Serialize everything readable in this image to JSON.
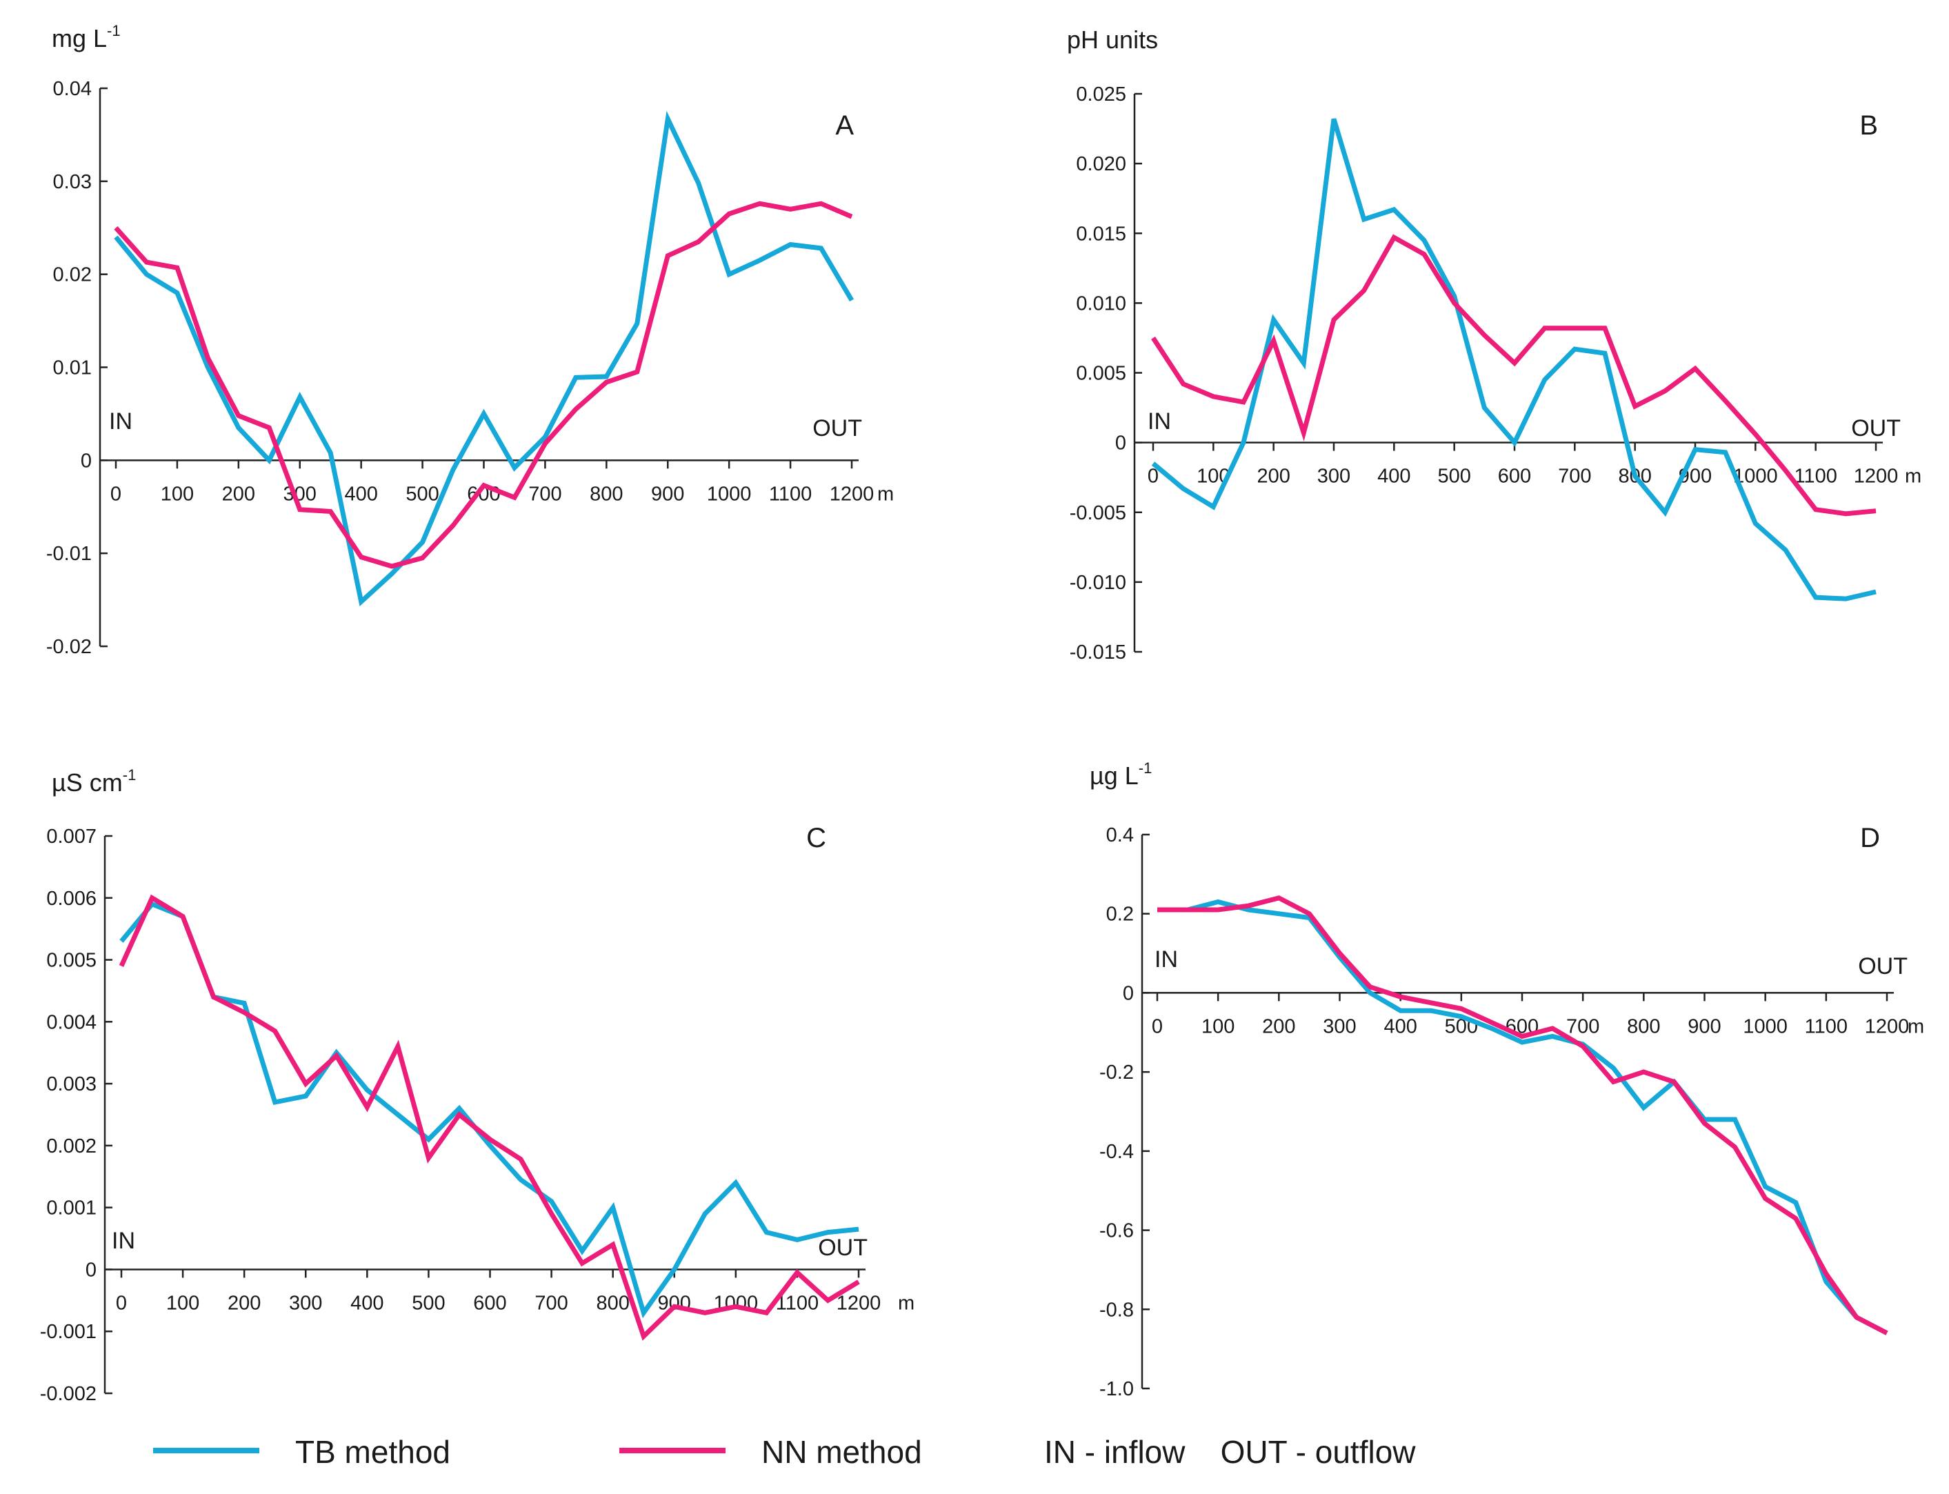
{
  "colors": {
    "tb": "#16a8d8",
    "nn": "#ec1e79",
    "axis": "#222222"
  },
  "legend": {
    "tb_label": "TB method",
    "nn_label": "NN method",
    "in_out_label": "IN - inflow    OUT - outflow"
  },
  "chart_data": [
    {
      "id": "A",
      "type": "line",
      "panel_letter": "A",
      "ylabel": "mg L",
      "ylabel_sup": "-1",
      "ylim": [
        -0.02,
        0.04
      ],
      "yticks": [
        -0.02,
        -0.01,
        0,
        0.01,
        0.02,
        0.03,
        0.04
      ],
      "ytick_labels": [
        "-0.02",
        "-0.01",
        "0",
        "0.01",
        "0.02",
        "0.03",
        "0.04"
      ],
      "xlim": [
        0,
        1200
      ],
      "xticks": [
        0,
        100,
        200,
        300,
        400,
        500,
        600,
        700,
        800,
        900,
        1000,
        1100,
        1200
      ],
      "xtick_labels": [
        "0",
        "100",
        "200",
        "300",
        "400",
        "500",
        "600",
        "700",
        "800",
        "900",
        "1000",
        "1100",
        "1200"
      ],
      "xunit": "m",
      "in_label": "IN",
      "out_label": "OUT",
      "x": [
        0,
        50,
        100,
        150,
        200,
        250,
        300,
        350,
        400,
        450,
        500,
        550,
        600,
        650,
        700,
        750,
        800,
        850,
        900,
        950,
        1000,
        1050,
        1100,
        1150,
        1200
      ],
      "series": [
        {
          "name": "TB method",
          "key": "tb",
          "values": [
            0.024,
            0.02,
            0.018,
            0.01,
            0.0035,
            0.0,
            0.0068,
            0.0008,
            -0.0152,
            -0.0122,
            -0.0088,
            -0.001,
            0.005,
            -0.0008,
            0.0025,
            0.0089,
            0.009,
            0.0147,
            0.0367,
            0.0298,
            0.02,
            0.0215,
            0.0232,
            0.0228,
            0.0172
          ]
        },
        {
          "name": "NN method",
          "key": "nn",
          "values": [
            0.025,
            0.0213,
            0.0207,
            0.011,
            0.0048,
            0.0035,
            -0.0053,
            -0.0055,
            -0.0104,
            -0.0114,
            -0.0105,
            -0.007,
            -0.0027,
            -0.004,
            0.0018,
            0.0055,
            0.0084,
            0.0095,
            0.022,
            0.0235,
            0.0265,
            0.0276,
            0.027,
            0.0276,
            0.0262
          ]
        }
      ]
    },
    {
      "id": "B",
      "type": "line",
      "panel_letter": "B",
      "ylabel": "pH units",
      "ylabel_sup": "",
      "ylim": [
        -0.015,
        0.025
      ],
      "yticks": [
        -0.015,
        -0.01,
        -0.005,
        0,
        0.005,
        0.01,
        0.015,
        0.02,
        0.025
      ],
      "ytick_labels": [
        "-0.015",
        "-0.010",
        "-0.005",
        "0",
        "0.005",
        "0.010",
        "0.015",
        "0.020",
        "0.025"
      ],
      "xlim": [
        0,
        1200
      ],
      "xticks": [
        0,
        100,
        200,
        300,
        400,
        500,
        600,
        700,
        800,
        900,
        1000,
        1100,
        1200
      ],
      "xtick_labels": [
        "0",
        "100",
        "200",
        "300",
        "400",
        "500",
        "600",
        "700",
        "800",
        "900",
        "1000",
        "1100",
        "1200"
      ],
      "xunit": "m",
      "in_label": "IN",
      "out_label": "OUT",
      "x": [
        0,
        50,
        100,
        150,
        200,
        250,
        300,
        350,
        400,
        450,
        500,
        550,
        600,
        650,
        700,
        750,
        800,
        850,
        900,
        950,
        1000,
        1050,
        1100,
        1150,
        1200
      ],
      "series": [
        {
          "name": "TB method",
          "key": "tb",
          "values": [
            -0.0015,
            -0.0033,
            -0.0046,
            0.0,
            0.0088,
            0.0057,
            0.0232,
            0.016,
            0.0167,
            0.0145,
            0.0105,
            0.0025,
            0.0,
            0.0045,
            0.0067,
            0.0064,
            -0.0024,
            -0.005,
            -0.0005,
            -0.0007,
            -0.0058,
            -0.0077,
            -0.0111,
            -0.0112,
            -0.0107
          ]
        },
        {
          "name": "NN method",
          "key": "nn",
          "values": [
            0.0075,
            0.0042,
            0.0033,
            0.0029,
            0.0073,
            0.0007,
            0.0088,
            0.0109,
            0.0147,
            0.0135,
            0.01,
            0.0077,
            0.0057,
            0.0082,
            0.0082,
            0.0082,
            0.0026,
            0.0037,
            0.0053,
            0.003,
            0.0006,
            -0.002,
            -0.0048,
            -0.0051,
            -0.0049
          ]
        }
      ]
    },
    {
      "id": "C",
      "type": "line",
      "panel_letter": "C",
      "ylabel": "µS cm",
      "ylabel_sup": "-1",
      "ylim": [
        -0.002,
        0.007
      ],
      "yticks": [
        -0.002,
        -0.001,
        0,
        0.001,
        0.002,
        0.003,
        0.004,
        0.005,
        0.006,
        0.007
      ],
      "ytick_labels": [
        "-0.002",
        "-0.001",
        "0",
        "0.001",
        "0.002",
        "0.003",
        "0.004",
        "0.005",
        "0.006",
        "0.007"
      ],
      "xlim": [
        0,
        1200
      ],
      "xticks": [
        0,
        100,
        200,
        300,
        400,
        500,
        600,
        700,
        800,
        900,
        1000,
        1100,
        1200
      ],
      "xtick_labels": [
        "0",
        "100",
        "200",
        "300",
        "400",
        "500",
        "600",
        "700",
        "800",
        "900",
        "1000",
        "1100",
        "1200"
      ],
      "xunit": "m",
      "in_label": "IN",
      "out_label": "OUT",
      "x": [
        0,
        50,
        100,
        150,
        200,
        250,
        300,
        350,
        400,
        450,
        500,
        550,
        600,
        650,
        700,
        750,
        800,
        850,
        900,
        950,
        1000,
        1050,
        1100,
        1150,
        1200
      ],
      "series": [
        {
          "name": "TB method",
          "key": "tb",
          "values": [
            0.0053,
            0.0059,
            0.0057,
            0.0044,
            0.0043,
            0.0027,
            0.0028,
            0.0035,
            0.0029,
            0.0025,
            0.0021,
            0.0026,
            0.002,
            0.00145,
            0.0011,
            0.0003,
            0.001,
            -0.0007,
            0.0,
            0.0009,
            0.0014,
            0.0006,
            0.00048,
            0.0006,
            0.00065
          ]
        },
        {
          "name": "NN method",
          "key": "nn",
          "values": [
            0.0049,
            0.006,
            0.0057,
            0.0044,
            0.00415,
            0.00385,
            0.003,
            0.00345,
            0.00262,
            0.0036,
            0.0018,
            0.0025,
            0.0021,
            0.00178,
            0.0009,
            0.0001,
            0.0004,
            -0.00108,
            -0.0006,
            -0.0007,
            -0.0006,
            -0.0007,
            -5e-05,
            -0.0005,
            -0.0002
          ]
        }
      ]
    },
    {
      "id": "D",
      "type": "line",
      "panel_letter": "D",
      "ylabel": "µg L",
      "ylabel_sup": "-1",
      "ylim": [
        -1.0,
        0.4
      ],
      "yticks": [
        -1.0,
        -0.8,
        -0.6,
        -0.4,
        -0.2,
        0,
        0.2,
        0.4
      ],
      "ytick_labels": [
        "-1.0",
        "-0.8",
        "-0.6",
        "-0.4",
        "-0.2",
        "0",
        "0.2",
        "0.4"
      ],
      "xlim": [
        0,
        1200
      ],
      "xticks": [
        0,
        100,
        200,
        300,
        400,
        500,
        600,
        700,
        800,
        900,
        1000,
        1100,
        1200
      ],
      "xtick_labels": [
        "0",
        "100",
        "200",
        "300",
        "400",
        "500",
        "600",
        "700",
        "800",
        "900",
        "1000",
        "1100",
        "1200"
      ],
      "xunit": "m",
      "in_label": "IN",
      "out_label": "OUT",
      "x": [
        0,
        50,
        100,
        150,
        200,
        250,
        300,
        350,
        400,
        450,
        500,
        550,
        600,
        650,
        700,
        750,
        800,
        850,
        900,
        950,
        1000,
        1050,
        1100,
        1150,
        1200
      ],
      "series": [
        {
          "name": "TB method",
          "key": "tb",
          "values": [
            0.21,
            0.21,
            0.23,
            0.21,
            0.2,
            0.19,
            0.09,
            0.0,
            -0.045,
            -0.045,
            -0.06,
            -0.09,
            -0.125,
            -0.11,
            -0.13,
            -0.19,
            -0.29,
            -0.225,
            -0.32,
            -0.32,
            -0.49,
            -0.53,
            -0.73,
            -0.82,
            -0.86
          ]
        },
        {
          "name": "NN method",
          "key": "nn",
          "values": [
            0.21,
            0.21,
            0.21,
            0.22,
            0.24,
            0.2,
            0.1,
            0.015,
            -0.01,
            -0.025,
            -0.04,
            -0.075,
            -0.11,
            -0.09,
            -0.135,
            -0.225,
            -0.2,
            -0.225,
            -0.33,
            -0.39,
            -0.52,
            -0.57,
            -0.71,
            -0.82,
            -0.86
          ]
        }
      ]
    }
  ]
}
